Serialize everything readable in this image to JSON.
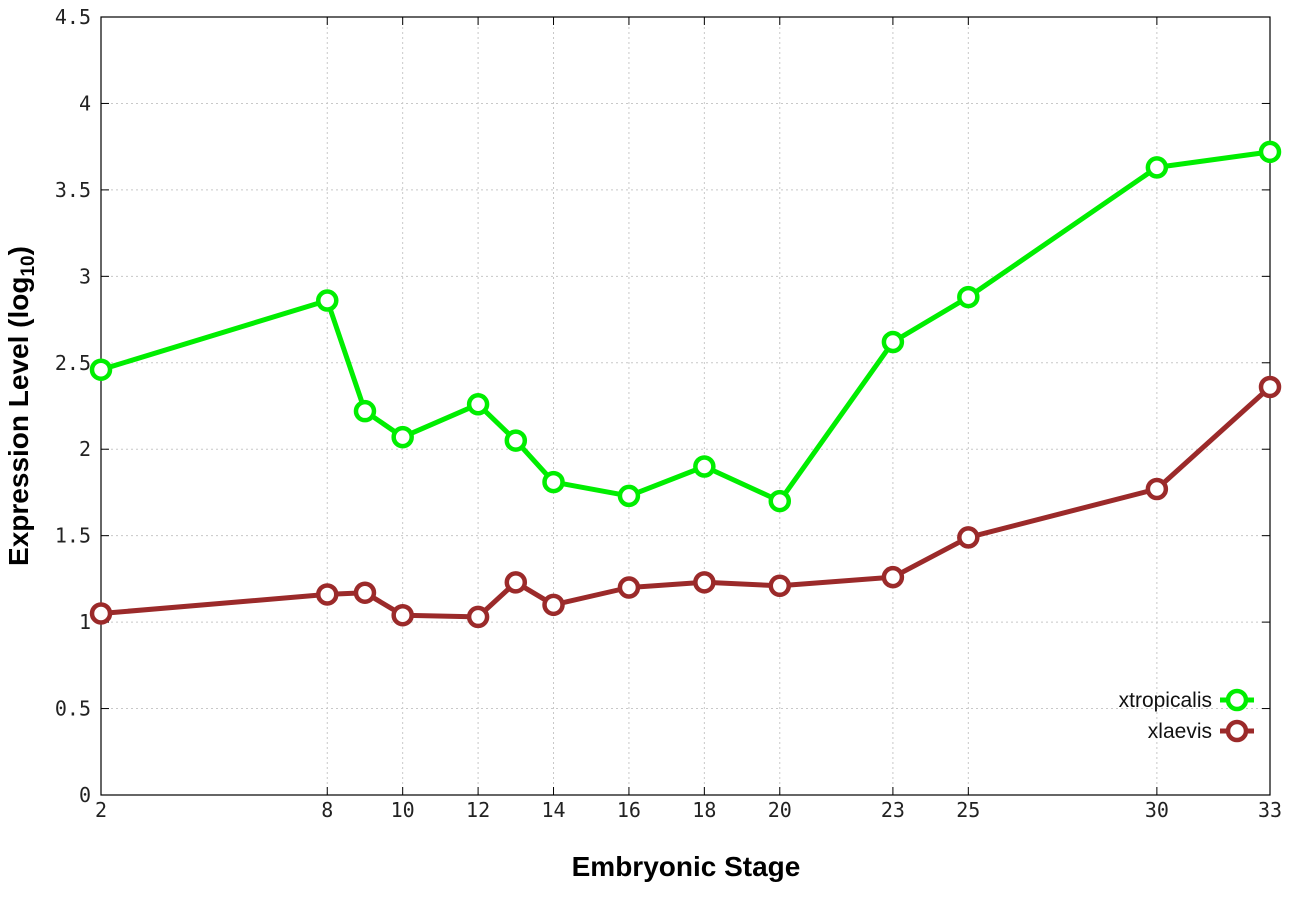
{
  "chart_data": {
    "type": "line",
    "xlabel": "Embryonic Stage",
    "ylabel": "Expression Level (log",
    "ylabel_subscript": "10",
    "ylabel_close": ")",
    "x_ticks": [
      2,
      8,
      10,
      12,
      14,
      16,
      18,
      20,
      23,
      25,
      30,
      33
    ],
    "x_ticks_labels": [
      "2",
      "8",
      "10",
      "12",
      "14",
      "16",
      "18",
      "20",
      "23",
      "25",
      "30",
      "33"
    ],
    "y_ticks": [
      0,
      0.5,
      1,
      1.5,
      2,
      2.5,
      3,
      3.5,
      4,
      4.5
    ],
    "y_ticks_labels": [
      "0",
      "0.5",
      "1",
      "1.5",
      "2",
      "2.5",
      "3",
      "3.5",
      "4",
      "4.5"
    ],
    "xlim": [
      2,
      33
    ],
    "ylim": [
      0,
      4.5
    ],
    "grid": true,
    "legend_position": "bottom-right",
    "x": [
      2,
      8,
      9,
      10,
      12,
      13,
      14,
      16,
      18,
      20,
      23,
      25,
      30,
      33
    ],
    "series": [
      {
        "name": "xtropicalis",
        "color": "#00ee00",
        "values": [
          2.46,
          2.86,
          2.22,
          2.07,
          2.26,
          2.05,
          1.81,
          1.73,
          1.9,
          1.7,
          2.62,
          2.88,
          3.63,
          3.72
        ]
      },
      {
        "name": "xlaevis",
        "color": "#9b2a2a",
        "values": [
          1.05,
          1.16,
          1.17,
          1.04,
          1.03,
          1.23,
          1.1,
          1.2,
          1.23,
          1.21,
          1.26,
          1.49,
          1.77,
          2.36
        ]
      }
    ]
  }
}
